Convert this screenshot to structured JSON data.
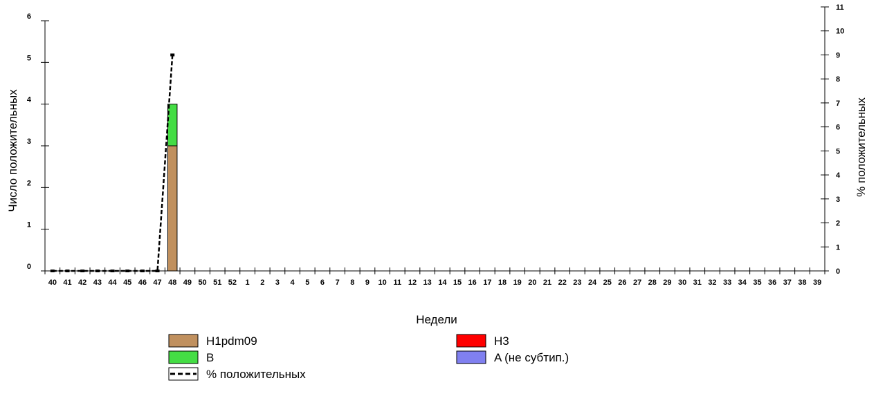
{
  "chart_data": {
    "type": "bar",
    "xlabel": "Недели",
    "ylabel": "Число положительных",
    "y2label": "% положительных",
    "ylim": [
      0,
      6
    ],
    "y2lim": [
      0,
      11
    ],
    "categories": [
      "40",
      "41",
      "42",
      "43",
      "44",
      "45",
      "46",
      "47",
      "48",
      "49",
      "50",
      "51",
      "52",
      "1",
      "2",
      "3",
      "4",
      "5",
      "6",
      "7",
      "8",
      "9",
      "10",
      "11",
      "12",
      "13",
      "14",
      "15",
      "16",
      "17",
      "18",
      "19",
      "20",
      "21",
      "22",
      "23",
      "24",
      "25",
      "26",
      "27",
      "28",
      "29",
      "30",
      "31",
      "32",
      "33",
      "34",
      "35",
      "36",
      "37",
      "38",
      "39"
    ],
    "series": [
      {
        "name": "H1pdm09",
        "color": "#c0905e",
        "values": [
          0,
          0,
          0,
          0,
          0,
          0,
          0,
          0,
          3,
          0,
          0,
          0,
          0,
          0,
          0,
          0,
          0,
          0,
          0,
          0,
          0,
          0,
          0,
          0,
          0,
          0,
          0,
          0,
          0,
          0,
          0,
          0,
          0,
          0,
          0,
          0,
          0,
          0,
          0,
          0,
          0,
          0,
          0,
          0,
          0,
          0,
          0,
          0,
          0,
          0,
          0,
          0
        ]
      },
      {
        "name": "B",
        "color": "#44dd44",
        "values": [
          0,
          0,
          0,
          0,
          0,
          0,
          0,
          0,
          1,
          0,
          0,
          0,
          0,
          0,
          0,
          0,
          0,
          0,
          0,
          0,
          0,
          0,
          0,
          0,
          0,
          0,
          0,
          0,
          0,
          0,
          0,
          0,
          0,
          0,
          0,
          0,
          0,
          0,
          0,
          0,
          0,
          0,
          0,
          0,
          0,
          0,
          0,
          0,
          0,
          0,
          0,
          0
        ]
      },
      {
        "name": "H3",
        "color": "#ff0000",
        "values": [
          0,
          0,
          0,
          0,
          0,
          0,
          0,
          0,
          0,
          0,
          0,
          0,
          0,
          0,
          0,
          0,
          0,
          0,
          0,
          0,
          0,
          0,
          0,
          0,
          0,
          0,
          0,
          0,
          0,
          0,
          0,
          0,
          0,
          0,
          0,
          0,
          0,
          0,
          0,
          0,
          0,
          0,
          0,
          0,
          0,
          0,
          0,
          0,
          0,
          0,
          0,
          0
        ]
      },
      {
        "name": "A (не субтип.)",
        "color": "#8080f0",
        "values": [
          0,
          0,
          0,
          0,
          0,
          0,
          0,
          0,
          0,
          0,
          0,
          0,
          0,
          0,
          0,
          0,
          0,
          0,
          0,
          0,
          0,
          0,
          0,
          0,
          0,
          0,
          0,
          0,
          0,
          0,
          0,
          0,
          0,
          0,
          0,
          0,
          0,
          0,
          0,
          0,
          0,
          0,
          0,
          0,
          0,
          0,
          0,
          0,
          0,
          0,
          0,
          0
        ]
      }
    ],
    "line": {
      "name": "% положительных",
      "axis": "right",
      "style": "dashed",
      "values": [
        0,
        0,
        0,
        0,
        0,
        0,
        0,
        0,
        9
      ]
    },
    "legend": [
      {
        "label": "H1pdm09",
        "kind": "box",
        "color": "#c0905e"
      },
      {
        "label": "H3",
        "kind": "box",
        "color": "#ff0000"
      },
      {
        "label": "B",
        "kind": "box",
        "color": "#44dd44"
      },
      {
        "label": "A (не субтип.)",
        "kind": "box",
        "color": "#8080f0"
      },
      {
        "label": "% положительных",
        "kind": "line",
        "color": "#000000"
      }
    ],
    "legend_position": "bottom",
    "grid": false
  }
}
